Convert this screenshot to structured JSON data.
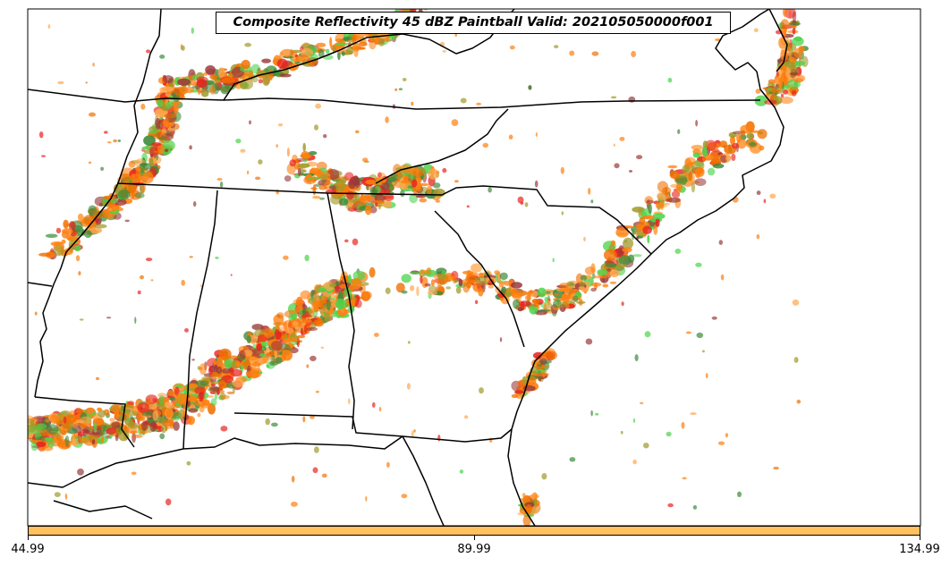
{
  "map": {
    "title": "Composite Reflectivity 45 dBZ Paintball Valid: 202105050000f001",
    "field": "Composite Reflectivity",
    "threshold_dbz": 45,
    "valid_time": "202105050000",
    "forecast_hour": "f001",
    "region": "Southeastern United States",
    "colors": {
      "orange": "#ff7f0e",
      "dark_orange": "#f07000",
      "red": "#e8231f",
      "green": "#4cd34a",
      "dark_green": "#3f8a3a",
      "olive": "#a09a2a",
      "maroon": "#9a3a3a",
      "light_orange": "#ffa64d",
      "colorbar_fill": "#ffc060"
    }
  },
  "colorbar": {
    "ticks": [
      "44.99",
      "89.99",
      "134.99"
    ],
    "min": 44.99,
    "max": 134.99
  }
}
